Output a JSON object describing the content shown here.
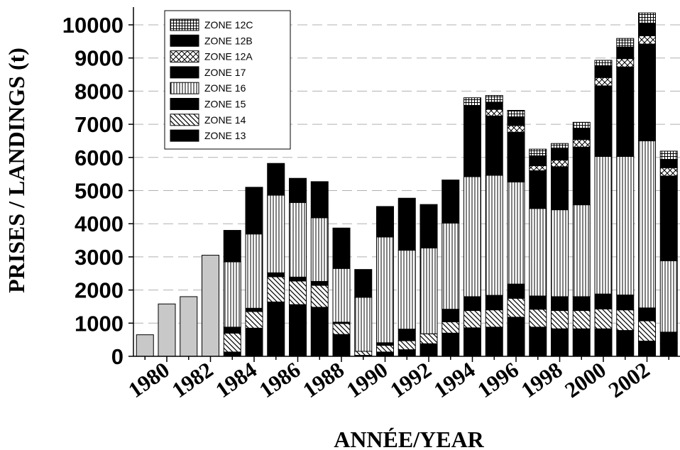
{
  "chart_data": {
    "type": "bar",
    "stacked": true,
    "xlabel": "ANNÉE/YEAR",
    "ylabel": "PRISES / LANDINGS (t)",
    "ylim": [
      0,
      10500
    ],
    "xlim": [
      1978.5,
      2003.6
    ],
    "yticks": [
      "0",
      "1000",
      "2000",
      "3000",
      "4000",
      "5000",
      "6000",
      "7000",
      "8000",
      "9000",
      "10000"
    ],
    "xticks": [
      "1980",
      "1982",
      "1984",
      "1986",
      "1988",
      "1990",
      "1992",
      "1994",
      "1996",
      "1998",
      "2000",
      "2002"
    ],
    "grid": "horizontal dashed",
    "legend_position": "top-left",
    "years": [
      1979,
      1980,
      1981,
      1982,
      1983,
      1984,
      1985,
      1986,
      1987,
      1988,
      1989,
      1990,
      1991,
      1992,
      1993,
      1994,
      1995,
      1996,
      1997,
      1998,
      1999,
      2000,
      2001,
      2002,
      2003
    ],
    "total_unzoned": {
      "color": "#c8c8c8",
      "values": [
        650,
        1580,
        1800,
        3050,
        0,
        0,
        0,
        0,
        0,
        0,
        0,
        0,
        0,
        0,
        0,
        0,
        0,
        0,
        0,
        0,
        0,
        0,
        0,
        0,
        0
      ]
    },
    "series": [
      {
        "name": "ZONE 13",
        "pattern": "solid",
        "values": [
          0,
          0,
          0,
          0,
          130,
          850,
          1640,
          1560,
          1480,
          660,
          30,
          130,
          200,
          380,
          700,
          860,
          880,
          1180,
          880,
          830,
          830,
          830,
          780,
          460,
          380
        ]
      },
      {
        "name": "ZONE 14",
        "pattern": "diagonal",
        "values": [
          0,
          0,
          0,
          0,
          570,
          500,
          760,
          710,
          660,
          330,
          120,
          200,
          270,
          300,
          340,
          520,
          520,
          570,
          540,
          550,
          550,
          600,
          620,
          610,
          0
        ]
      },
      {
        "name": "ZONE 15",
        "pattern": "solid",
        "values": [
          0,
          0,
          0,
          0,
          180,
          100,
          120,
          120,
          120,
          40,
          0,
          80,
          350,
          0,
          380,
          420,
          440,
          430,
          400,
          420,
          420,
          450,
          450,
          390,
          350
        ]
      },
      {
        "name": "ZONE 16",
        "pattern": "vertical",
        "values": [
          0,
          0,
          0,
          0,
          1970,
          2240,
          2340,
          2250,
          1920,
          1620,
          1630,
          3190,
          2380,
          2590,
          2600,
          3620,
          3620,
          3080,
          2640,
          2620,
          2770,
          4150,
          4180,
          5040,
          2150
        ]
      },
      {
        "name": "ZONE 17",
        "pattern": "solid",
        "values": [
          0,
          0,
          0,
          0,
          950,
          1410,
          960,
          730,
          1090,
          1220,
          840,
          920,
          1570,
          1310,
          1300,
          1800,
          1790,
          1500,
          1140,
          1300,
          1740,
          2130,
          2700,
          2920,
          2560
        ]
      },
      {
        "name": "ZONE 12A",
        "pattern": "cross",
        "values": [
          0,
          0,
          0,
          0,
          0,
          0,
          0,
          0,
          0,
          0,
          0,
          0,
          0,
          0,
          0,
          0,
          200,
          200,
          150,
          200,
          230,
          250,
          250,
          250,
          250
        ]
      },
      {
        "name": "ZONE 12B",
        "pattern": "solid",
        "values": [
          0,
          0,
          0,
          0,
          0,
          0,
          0,
          0,
          0,
          0,
          0,
          0,
          0,
          0,
          0,
          330,
          220,
          250,
          300,
          340,
          340,
          350,
          350,
          380,
          250
        ]
      },
      {
        "name": "ZONE 12C",
        "pattern": "grid",
        "values": [
          0,
          0,
          0,
          0,
          0,
          0,
          0,
          0,
          0,
          0,
          0,
          0,
          0,
          0,
          0,
          250,
          200,
          210,
          200,
          160,
          180,
          170,
          260,
          310,
          250
        ]
      }
    ]
  }
}
